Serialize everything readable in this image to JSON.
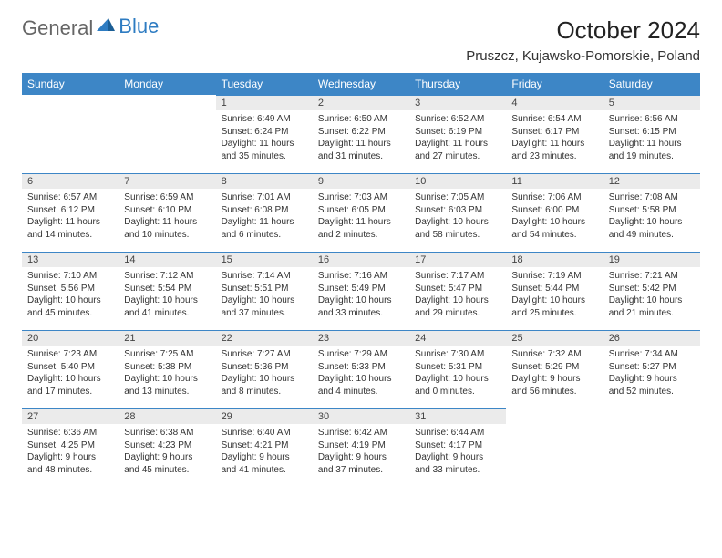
{
  "logo": {
    "text1": "General",
    "text2": "Blue"
  },
  "title": "October 2024",
  "location": "Pruszcz, Kujawsko-Pomorskie, Poland",
  "colors": {
    "header_bg": "#3d86c6",
    "header_text": "#ffffff",
    "daynum_bg": "#ebebeb",
    "daynum_border": "#3d86c6",
    "body_bg": "#ffffff",
    "text": "#333333",
    "logo_gray": "#666666",
    "logo_blue": "#2e7cc2"
  },
  "fonts": {
    "month_title_pt": 26,
    "location_pt": 15,
    "week_header_pt": 12,
    "daynum_pt": 11,
    "body_pt": 10
  },
  "weekdays": [
    "Sunday",
    "Monday",
    "Tuesday",
    "Wednesday",
    "Thursday",
    "Friday",
    "Saturday"
  ],
  "weeks": [
    [
      null,
      null,
      {
        "n": "1",
        "sr": "6:49 AM",
        "ss": "6:24 PM",
        "dl": "11 hours and 35 minutes."
      },
      {
        "n": "2",
        "sr": "6:50 AM",
        "ss": "6:22 PM",
        "dl": "11 hours and 31 minutes."
      },
      {
        "n": "3",
        "sr": "6:52 AM",
        "ss": "6:19 PM",
        "dl": "11 hours and 27 minutes."
      },
      {
        "n": "4",
        "sr": "6:54 AM",
        "ss": "6:17 PM",
        "dl": "11 hours and 23 minutes."
      },
      {
        "n": "5",
        "sr": "6:56 AM",
        "ss": "6:15 PM",
        "dl": "11 hours and 19 minutes."
      }
    ],
    [
      {
        "n": "6",
        "sr": "6:57 AM",
        "ss": "6:12 PM",
        "dl": "11 hours and 14 minutes."
      },
      {
        "n": "7",
        "sr": "6:59 AM",
        "ss": "6:10 PM",
        "dl": "11 hours and 10 minutes."
      },
      {
        "n": "8",
        "sr": "7:01 AM",
        "ss": "6:08 PM",
        "dl": "11 hours and 6 minutes."
      },
      {
        "n": "9",
        "sr": "7:03 AM",
        "ss": "6:05 PM",
        "dl": "11 hours and 2 minutes."
      },
      {
        "n": "10",
        "sr": "7:05 AM",
        "ss": "6:03 PM",
        "dl": "10 hours and 58 minutes."
      },
      {
        "n": "11",
        "sr": "7:06 AM",
        "ss": "6:00 PM",
        "dl": "10 hours and 54 minutes."
      },
      {
        "n": "12",
        "sr": "7:08 AM",
        "ss": "5:58 PM",
        "dl": "10 hours and 49 minutes."
      }
    ],
    [
      {
        "n": "13",
        "sr": "7:10 AM",
        "ss": "5:56 PM",
        "dl": "10 hours and 45 minutes."
      },
      {
        "n": "14",
        "sr": "7:12 AM",
        "ss": "5:54 PM",
        "dl": "10 hours and 41 minutes."
      },
      {
        "n": "15",
        "sr": "7:14 AM",
        "ss": "5:51 PM",
        "dl": "10 hours and 37 minutes."
      },
      {
        "n": "16",
        "sr": "7:16 AM",
        "ss": "5:49 PM",
        "dl": "10 hours and 33 minutes."
      },
      {
        "n": "17",
        "sr": "7:17 AM",
        "ss": "5:47 PM",
        "dl": "10 hours and 29 minutes."
      },
      {
        "n": "18",
        "sr": "7:19 AM",
        "ss": "5:44 PM",
        "dl": "10 hours and 25 minutes."
      },
      {
        "n": "19",
        "sr": "7:21 AM",
        "ss": "5:42 PM",
        "dl": "10 hours and 21 minutes."
      }
    ],
    [
      {
        "n": "20",
        "sr": "7:23 AM",
        "ss": "5:40 PM",
        "dl": "10 hours and 17 minutes."
      },
      {
        "n": "21",
        "sr": "7:25 AM",
        "ss": "5:38 PM",
        "dl": "10 hours and 13 minutes."
      },
      {
        "n": "22",
        "sr": "7:27 AM",
        "ss": "5:36 PM",
        "dl": "10 hours and 8 minutes."
      },
      {
        "n": "23",
        "sr": "7:29 AM",
        "ss": "5:33 PM",
        "dl": "10 hours and 4 minutes."
      },
      {
        "n": "24",
        "sr": "7:30 AM",
        "ss": "5:31 PM",
        "dl": "10 hours and 0 minutes."
      },
      {
        "n": "25",
        "sr": "7:32 AM",
        "ss": "5:29 PM",
        "dl": "9 hours and 56 minutes."
      },
      {
        "n": "26",
        "sr": "7:34 AM",
        "ss": "5:27 PM",
        "dl": "9 hours and 52 minutes."
      }
    ],
    [
      {
        "n": "27",
        "sr": "6:36 AM",
        "ss": "4:25 PM",
        "dl": "9 hours and 48 minutes."
      },
      {
        "n": "28",
        "sr": "6:38 AM",
        "ss": "4:23 PM",
        "dl": "9 hours and 45 minutes."
      },
      {
        "n": "29",
        "sr": "6:40 AM",
        "ss": "4:21 PM",
        "dl": "9 hours and 41 minutes."
      },
      {
        "n": "30",
        "sr": "6:42 AM",
        "ss": "4:19 PM",
        "dl": "9 hours and 37 minutes."
      },
      {
        "n": "31",
        "sr": "6:44 AM",
        "ss": "4:17 PM",
        "dl": "9 hours and 33 minutes."
      },
      null,
      null
    ]
  ],
  "labels": {
    "sunrise": "Sunrise:",
    "sunset": "Sunset:",
    "daylight": "Daylight:"
  }
}
